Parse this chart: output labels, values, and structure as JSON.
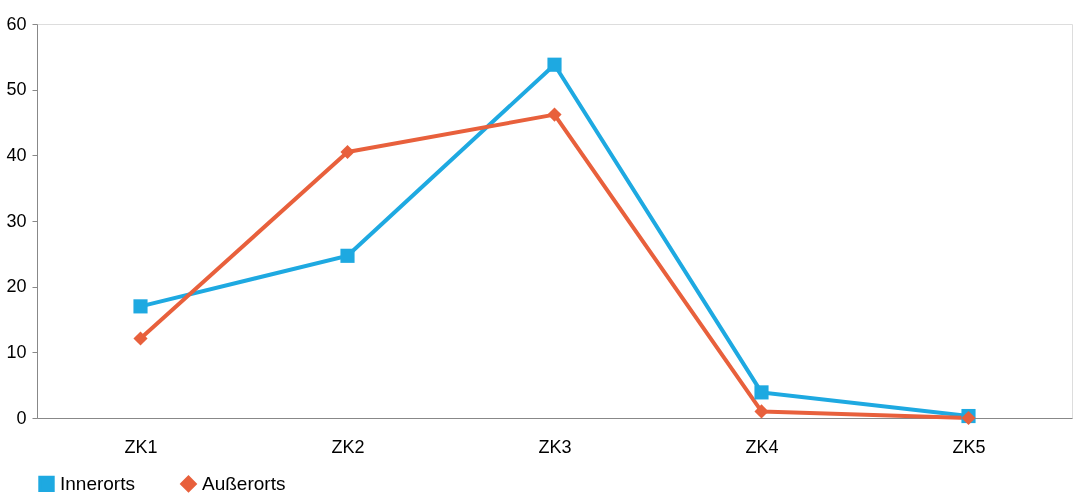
{
  "chart_data": {
    "type": "line",
    "categories": [
      "ZK1",
      "ZK2",
      "ZK3",
      "ZK4",
      "ZK5"
    ],
    "series": [
      {
        "name": "Innerorts",
        "color": "#1ea9e1",
        "marker": "square",
        "values": [
          17.0,
          24.7,
          53.8,
          3.9,
          0.3
        ]
      },
      {
        "name": "Außerorts",
        "color": "#e8603c",
        "marker": "diamond",
        "values": [
          12.1,
          40.5,
          46.2,
          1.0,
          0.0
        ]
      }
    ],
    "ylim": [
      0,
      60
    ],
    "yticks": [
      0,
      10,
      20,
      30,
      40,
      50,
      60
    ],
    "grid": false,
    "legend": "bottom",
    "line_style": "solid"
  }
}
